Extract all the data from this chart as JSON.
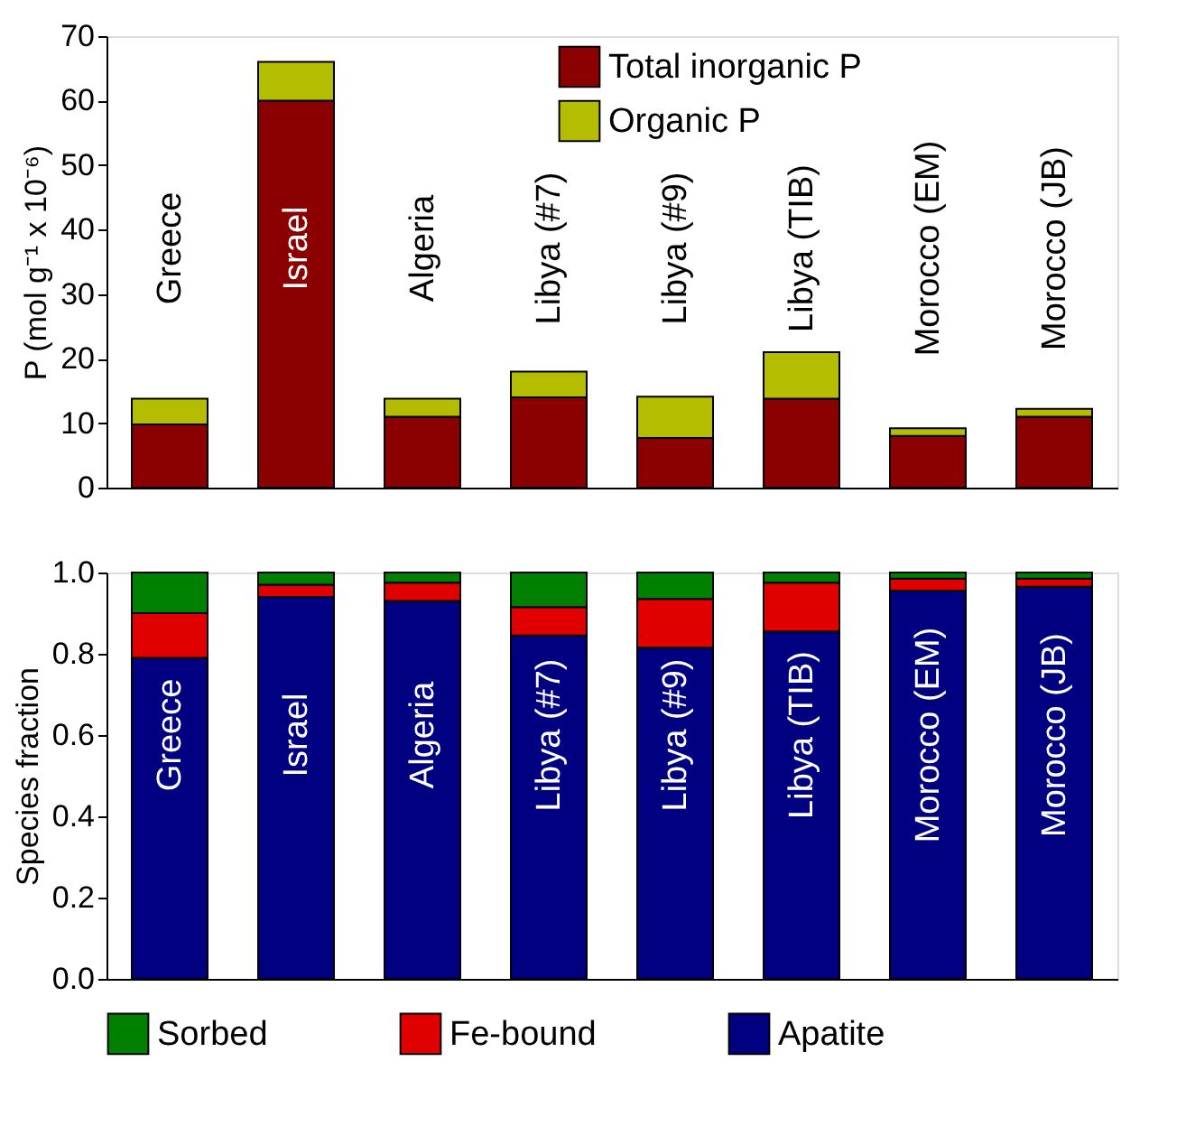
{
  "chart_data": [
    {
      "type": "bar",
      "stacked": true,
      "categories": [
        "Greece",
        "Israel",
        "Algeria",
        "Libya (#7)",
        "Libya (#9)",
        "Libya (TIB)",
        "Morocco (EM)",
        "Morocco (JB)"
      ],
      "ylabel": "P (mol g⁻¹ x 10⁻⁶)",
      "ylim": [
        0,
        70
      ],
      "yticks": [
        0,
        10,
        20,
        30,
        40,
        50,
        60,
        70
      ],
      "grid": false,
      "legend": "top",
      "tick_labels": "y",
      "series": [
        {
          "name": "Total inorganic P",
          "color": "#8b0000",
          "values": [
            9.8,
            60,
            11,
            14,
            7.7,
            13.8,
            8,
            11
          ]
        },
        {
          "name": "Organic P",
          "color": "#b5bd00",
          "values": [
            4,
            6,
            2.8,
            4,
            6.4,
            7.2,
            1.2,
            1.2
          ]
        }
      ]
    },
    {
      "type": "bar",
      "stacked": true,
      "categories": [
        "Greece",
        "Israel",
        "Algeria",
        "Libya (#7)",
        "Libya (#9)",
        "Libya (TIB)",
        "Morocco (EM)",
        "Morocco (JB)"
      ],
      "ylabel": "Species fraction",
      "ylim": [
        0,
        1
      ],
      "yticks": [
        {
          "value": 0,
          "label": "0.0"
        },
        0.2,
        0.4,
        0.6,
        0.8,
        {
          "value": 1,
          "label": "1.0"
        }
      ],
      "grid": false,
      "legend": "bottom",
      "tick_labels": "y",
      "series": [
        {
          "name": "Apatite",
          "color": "#000080",
          "values": [
            0.79,
            0.94,
            0.93,
            0.845,
            0.815,
            0.855,
            0.955,
            0.965
          ]
        },
        {
          "name": "Fe-bound",
          "color": "#e00000",
          "values": [
            0.11,
            0.03,
            0.045,
            0.07,
            0.12,
            0.12,
            0.03,
            0.02
          ]
        },
        {
          "name": "Sorbed",
          "color": "#008000",
          "values": [
            0.1,
            0.03,
            0.025,
            0.085,
            0.065,
            0.025,
            0.015,
            0.015
          ]
        }
      ]
    }
  ]
}
